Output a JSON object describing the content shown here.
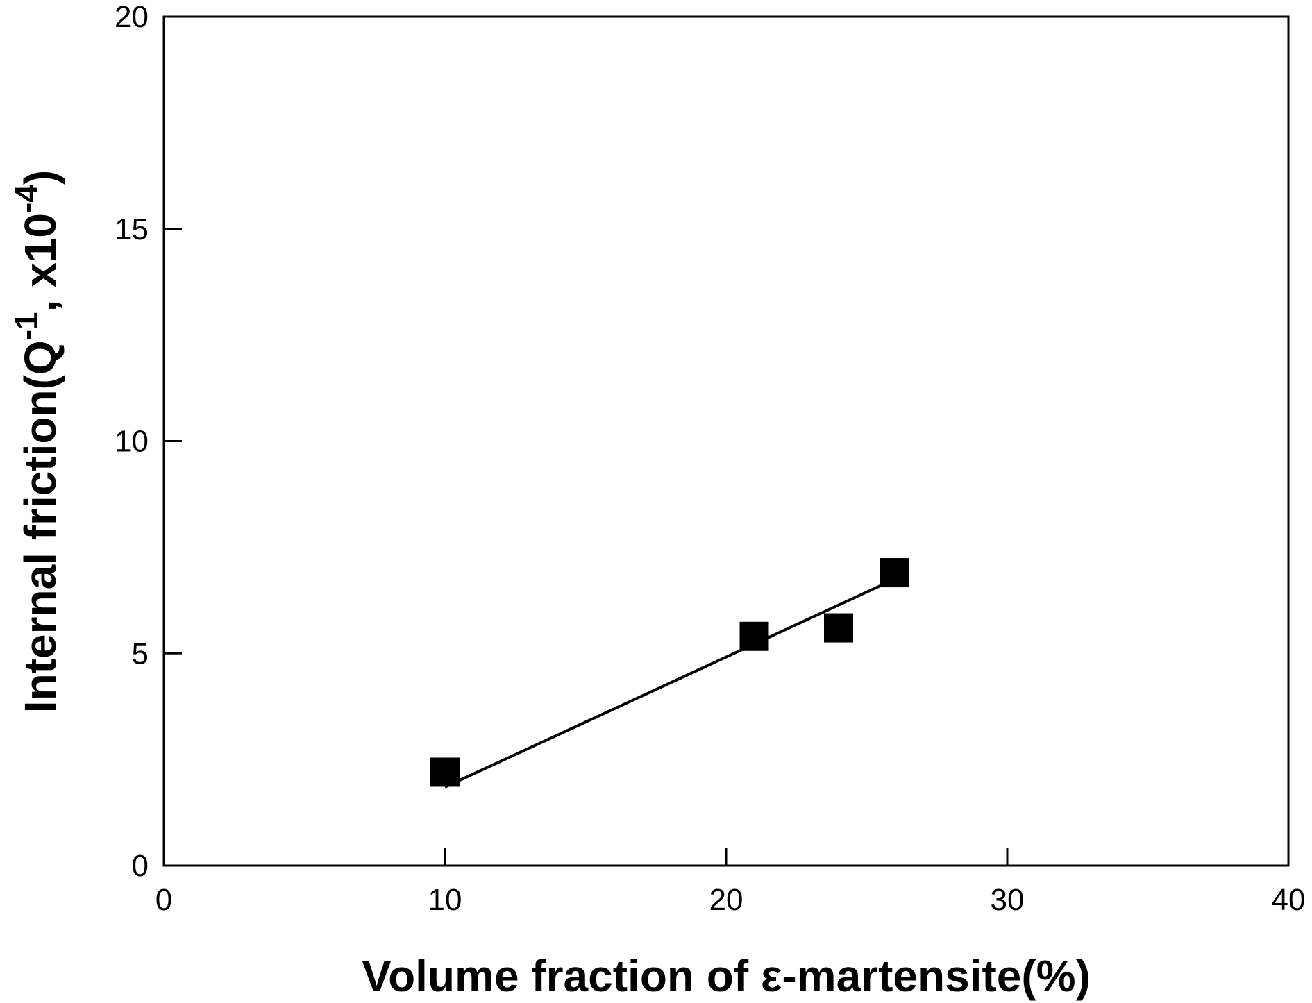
{
  "chart_data": {
    "type": "scatter",
    "title": "",
    "xlabel": "Volume fraction of ε-martensite(%)",
    "ylabel": {
      "main": "Internal friction(Q",
      "sup1": "-1",
      "mid": ", x10",
      "sup2": "-4",
      "end": ")"
    },
    "xlim": [
      0,
      40
    ],
    "ylim": [
      0,
      20
    ],
    "x_ticks": [
      0,
      10,
      20,
      30,
      40
    ],
    "y_ticks": [
      0,
      5,
      10,
      15,
      20
    ],
    "x_tick_labels": [
      "0",
      "10",
      "20",
      "30",
      "40"
    ],
    "y_tick_labels": [
      "0",
      "5",
      "10",
      "15",
      "20"
    ],
    "grid": false,
    "legend": "none",
    "series": [
      {
        "marker": "filled-square",
        "color": "#000000",
        "points": [
          {
            "x": 10,
            "y": 2.2
          },
          {
            "x": 21,
            "y": 5.4
          },
          {
            "x": 24,
            "y": 5.6
          },
          {
            "x": 26,
            "y": 6.9
          }
        ]
      }
    ],
    "fit_line": {
      "color": "#000000",
      "start": {
        "x": 10,
        "y": 1.85
      },
      "end": {
        "x": 26,
        "y": 6.75
      }
    }
  }
}
